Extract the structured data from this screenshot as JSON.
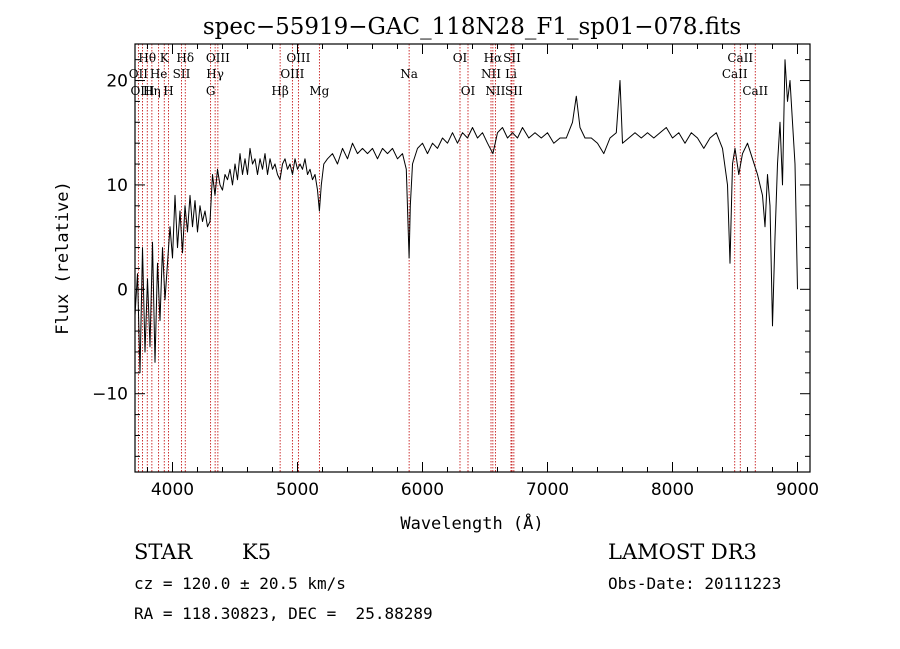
{
  "chart_data": {
    "type": "line",
    "title": "spec−55919−GAC_118N28_F1_sp01−078.fits",
    "xlabel": "Wavelength (Å)",
    "ylabel": "Flux (relative)",
    "xlim": [
      3700,
      9100
    ],
    "ylim": [
      -17.5,
      23.5
    ],
    "x_ticks": [
      {
        "value": 4000,
        "label": "4000"
      },
      {
        "value": 5000,
        "label": "5000"
      },
      {
        "value": 6000,
        "label": "6000"
      },
      {
        "value": 7000,
        "label": "7000"
      },
      {
        "value": 8000,
        "label": "8000"
      },
      {
        "value": 9000,
        "label": "9000"
      }
    ],
    "y_ticks": [
      {
        "value": -10,
        "label": "−10"
      },
      {
        "value": 0,
        "label": "0"
      },
      {
        "value": 10,
        "label": "10"
      },
      {
        "value": 20,
        "label": "20"
      }
    ],
    "line_color": "#000000",
    "marker_color": "#c00000",
    "spectral_lines": [
      {
        "label": "Hθ",
        "wavelength": 3798,
        "row": 1
      },
      {
        "label": "OII",
        "wavelength": 3727,
        "row": 2
      },
      {
        "label": "OIII",
        "wavelength": 3760,
        "row": 3
      },
      {
        "label": "Hη",
        "wavelength": 3835,
        "row": 3
      },
      {
        "label": "K",
        "wavelength": 3934,
        "row": 1
      },
      {
        "label": "He",
        "wavelength": 3889,
        "row": 2
      },
      {
        "label": "H",
        "wavelength": 3968,
        "row": 3
      },
      {
        "label": "SII",
        "wavelength": 4072,
        "row": 2
      },
      {
        "label": "Hδ",
        "wavelength": 4102,
        "row": 1
      },
      {
        "label": "OIII",
        "wavelength": 4363,
        "row": 1
      },
      {
        "label": "Hγ",
        "wavelength": 4341,
        "row": 2
      },
      {
        "label": "G",
        "wavelength": 4305,
        "row": 3
      },
      {
        "label": "Hβ",
        "wavelength": 4861,
        "row": 3
      },
      {
        "label": "OIII",
        "wavelength": 5007,
        "row": 1
      },
      {
        "label": "OIII",
        "wavelength": 4959,
        "row": 2
      },
      {
        "label": "Mg",
        "wavelength": 5175,
        "row": 3
      },
      {
        "label": "Na",
        "wavelength": 5893,
        "row": 2
      },
      {
        "label": "OI",
        "wavelength": 6300,
        "row": 1
      },
      {
        "label": "OI",
        "wavelength": 6364,
        "row": 3
      },
      {
        "label": "Hα",
        "wavelength": 6563,
        "row": 1
      },
      {
        "label": "NII",
        "wavelength": 6548,
        "row": 2
      },
      {
        "label": "NII",
        "wavelength": 6583,
        "row": 3
      },
      {
        "label": "SII",
        "wavelength": 6716,
        "row": 1
      },
      {
        "label": "Li",
        "wavelength": 6708,
        "row": 2
      },
      {
        "label": "SII",
        "wavelength": 6731,
        "row": 3
      },
      {
        "label": "CaII",
        "wavelength": 8542,
        "row": 1
      },
      {
        "label": "CaII",
        "wavelength": 8498,
        "row": 2
      },
      {
        "label": "CaII",
        "wavelength": 8662,
        "row": 3
      }
    ],
    "series": [
      {
        "name": "flux",
        "points": [
          [
            3700,
            -2.5
          ],
          [
            3720,
            1.5
          ],
          [
            3740,
            -8.0
          ],
          [
            3760,
            4.0
          ],
          [
            3780,
            -6.0
          ],
          [
            3800,
            1.0
          ],
          [
            3820,
            -5.5
          ],
          [
            3840,
            4.5
          ],
          [
            3860,
            -7.0
          ],
          [
            3880,
            2.5
          ],
          [
            3900,
            -3.0
          ],
          [
            3920,
            4.0
          ],
          [
            3940,
            -1.0
          ],
          [
            3960,
            2.5
          ],
          [
            3980,
            6.0
          ],
          [
            4000,
            3.0
          ],
          [
            4020,
            9.0
          ],
          [
            4040,
            4.0
          ],
          [
            4060,
            7.5
          ],
          [
            4080,
            3.5
          ],
          [
            4100,
            8.0
          ],
          [
            4120,
            5.5
          ],
          [
            4140,
            9.0
          ],
          [
            4160,
            6.0
          ],
          [
            4180,
            8.5
          ],
          [
            4200,
            5.5
          ],
          [
            4220,
            8.0
          ],
          [
            4240,
            6.5
          ],
          [
            4260,
            7.5
          ],
          [
            4280,
            6.0
          ],
          [
            4300,
            6.5
          ],
          [
            4320,
            11.0
          ],
          [
            4340,
            9.0
          ],
          [
            4360,
            11.5
          ],
          [
            4380,
            10.0
          ],
          [
            4400,
            9.5
          ],
          [
            4420,
            11.0
          ],
          [
            4440,
            10.5
          ],
          [
            4460,
            11.5
          ],
          [
            4480,
            10.0
          ],
          [
            4500,
            12.0
          ],
          [
            4520,
            10.5
          ],
          [
            4540,
            13.0
          ],
          [
            4560,
            11.0
          ],
          [
            4580,
            12.5
          ],
          [
            4600,
            11.0
          ],
          [
            4620,
            13.5
          ],
          [
            4640,
            12.0
          ],
          [
            4660,
            12.5
          ],
          [
            4680,
            11.0
          ],
          [
            4700,
            12.5
          ],
          [
            4720,
            11.5
          ],
          [
            4740,
            13.0
          ],
          [
            4760,
            11.0
          ],
          [
            4780,
            12.5
          ],
          [
            4800,
            11.5
          ],
          [
            4820,
            12.0
          ],
          [
            4840,
            11.0
          ],
          [
            4860,
            10.5
          ],
          [
            4880,
            12.0
          ],
          [
            4900,
            12.5
          ],
          [
            4920,
            11.5
          ],
          [
            4940,
            12.0
          ],
          [
            4960,
            11.0
          ],
          [
            4980,
            12.5
          ],
          [
            5000,
            11.5
          ],
          [
            5020,
            12.0
          ],
          [
            5040,
            11.5
          ],
          [
            5060,
            12.5
          ],
          [
            5080,
            11.0
          ],
          [
            5100,
            11.5
          ],
          [
            5120,
            10.5
          ],
          [
            5140,
            11.0
          ],
          [
            5160,
            9.5
          ],
          [
            5175,
            7.5
          ],
          [
            5190,
            10.0
          ],
          [
            5210,
            12.0
          ],
          [
            5240,
            12.5
          ],
          [
            5280,
            13.0
          ],
          [
            5320,
            12.0
          ],
          [
            5360,
            13.5
          ],
          [
            5400,
            12.5
          ],
          [
            5440,
            14.0
          ],
          [
            5480,
            13.0
          ],
          [
            5520,
            13.5
          ],
          [
            5560,
            13.0
          ],
          [
            5600,
            13.5
          ],
          [
            5640,
            12.5
          ],
          [
            5680,
            13.5
          ],
          [
            5720,
            13.0
          ],
          [
            5760,
            13.5
          ],
          [
            5800,
            12.5
          ],
          [
            5840,
            13.0
          ],
          [
            5870,
            11.5
          ],
          [
            5885,
            6.0
          ],
          [
            5893,
            3.0
          ],
          [
            5902,
            8.0
          ],
          [
            5920,
            12.0
          ],
          [
            5960,
            13.5
          ],
          [
            6000,
            14.0
          ],
          [
            6040,
            13.0
          ],
          [
            6080,
            14.0
          ],
          [
            6120,
            13.5
          ],
          [
            6160,
            14.5
          ],
          [
            6200,
            14.0
          ],
          [
            6240,
            15.0
          ],
          [
            6280,
            14.0
          ],
          [
            6320,
            15.0
          ],
          [
            6360,
            14.5
          ],
          [
            6400,
            15.5
          ],
          [
            6440,
            14.5
          ],
          [
            6480,
            15.0
          ],
          [
            6520,
            14.0
          ],
          [
            6563,
            13.0
          ],
          [
            6600,
            15.0
          ],
          [
            6640,
            15.5
          ],
          [
            6680,
            14.5
          ],
          [
            6720,
            15.0
          ],
          [
            6760,
            14.5
          ],
          [
            6800,
            15.5
          ],
          [
            6850,
            14.5
          ],
          [
            6900,
            15.0
          ],
          [
            6950,
            14.5
          ],
          [
            7000,
            15.0
          ],
          [
            7050,
            14.0
          ],
          [
            7100,
            14.5
          ],
          [
            7150,
            14.5
          ],
          [
            7200,
            16.0
          ],
          [
            7230,
            18.5
          ],
          [
            7260,
            15.5
          ],
          [
            7300,
            14.5
          ],
          [
            7350,
            14.5
          ],
          [
            7400,
            14.0
          ],
          [
            7450,
            13.0
          ],
          [
            7500,
            14.5
          ],
          [
            7550,
            15.0
          ],
          [
            7580,
            20.0
          ],
          [
            7600,
            14.0
          ],
          [
            7650,
            14.5
          ],
          [
            7700,
            15.0
          ],
          [
            7750,
            14.5
          ],
          [
            7800,
            15.0
          ],
          [
            7850,
            14.5
          ],
          [
            7900,
            15.0
          ],
          [
            7950,
            15.5
          ],
          [
            8000,
            14.5
          ],
          [
            8050,
            15.0
          ],
          [
            8100,
            14.0
          ],
          [
            8150,
            15.0
          ],
          [
            8200,
            14.5
          ],
          [
            8250,
            13.5
          ],
          [
            8300,
            14.5
          ],
          [
            8350,
            15.0
          ],
          [
            8400,
            13.5
          ],
          [
            8440,
            10.0
          ],
          [
            8460,
            2.5
          ],
          [
            8480,
            12.0
          ],
          [
            8500,
            13.5
          ],
          [
            8530,
            11.0
          ],
          [
            8560,
            13.0
          ],
          [
            8600,
            14.0
          ],
          [
            8640,
            12.5
          ],
          [
            8680,
            11.0
          ],
          [
            8720,
            9.0
          ],
          [
            8740,
            6.0
          ],
          [
            8760,
            11.0
          ],
          [
            8780,
            8.0
          ],
          [
            8800,
            -3.5
          ],
          [
            8820,
            5.0
          ],
          [
            8840,
            12.0
          ],
          [
            8860,
            16.0
          ],
          [
            8880,
            10.0
          ],
          [
            8900,
            22.0
          ],
          [
            8920,
            18.0
          ],
          [
            8940,
            20.0
          ],
          [
            8960,
            16.0
          ],
          [
            8980,
            12.0
          ],
          [
            9000,
            0.0
          ]
        ]
      }
    ]
  },
  "info": {
    "object_class": "STAR",
    "subclass": "K5",
    "survey": "LAMOST DR3",
    "redshift_line": "cz = 120.0 ± 20.5 km/s",
    "obs_date_line": "Obs-Date: 20111223",
    "coords_line": "RA = 118.30823, DEC =  25.88289"
  }
}
